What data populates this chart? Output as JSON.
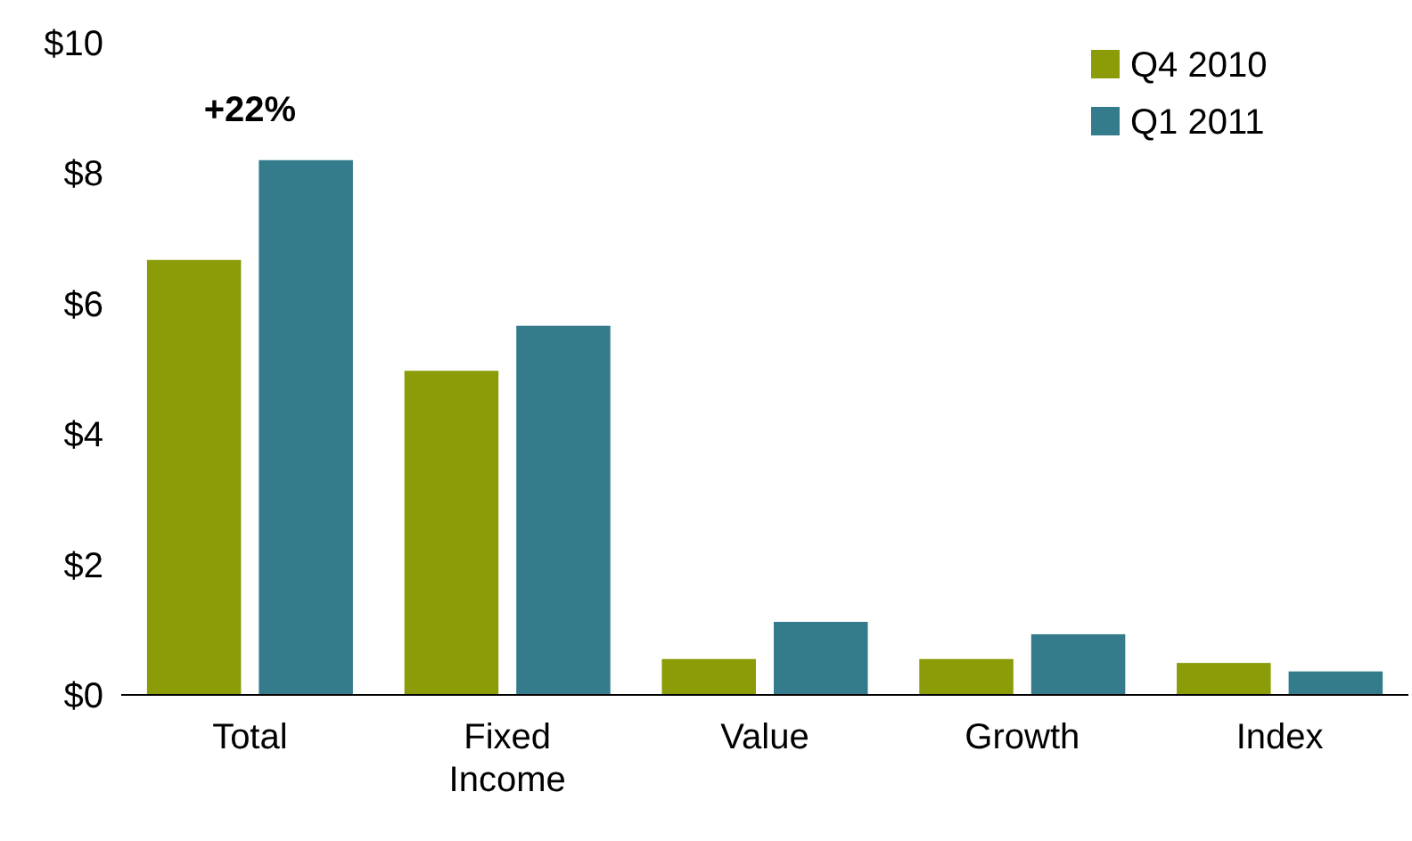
{
  "chart_data": {
    "type": "bar",
    "categories": [
      "Total",
      "Fixed Income",
      "Value",
      "Growth",
      "Index"
    ],
    "series": [
      {
        "name": "Q4 2010",
        "color": "#8b9c08",
        "values": [
          6.67,
          4.97,
          0.55,
          0.55,
          0.49
        ]
      },
      {
        "name": "Q1 2011",
        "color": "#347b8c",
        "values": [
          8.2,
          5.66,
          1.12,
          0.93,
          0.36
        ]
      }
    ],
    "ylim": [
      0,
      10
    ],
    "yticks": [
      {
        "value": 0,
        "label": "$0"
      },
      {
        "value": 2,
        "label": "$2"
      },
      {
        "value": 4,
        "label": "$4"
      },
      {
        "value": 6,
        "label": "$6"
      },
      {
        "value": 8,
        "label": "$8"
      },
      {
        "value": 10,
        "label": "$10"
      }
    ],
    "annotations": [
      "+22%"
    ],
    "legend": "top right"
  }
}
